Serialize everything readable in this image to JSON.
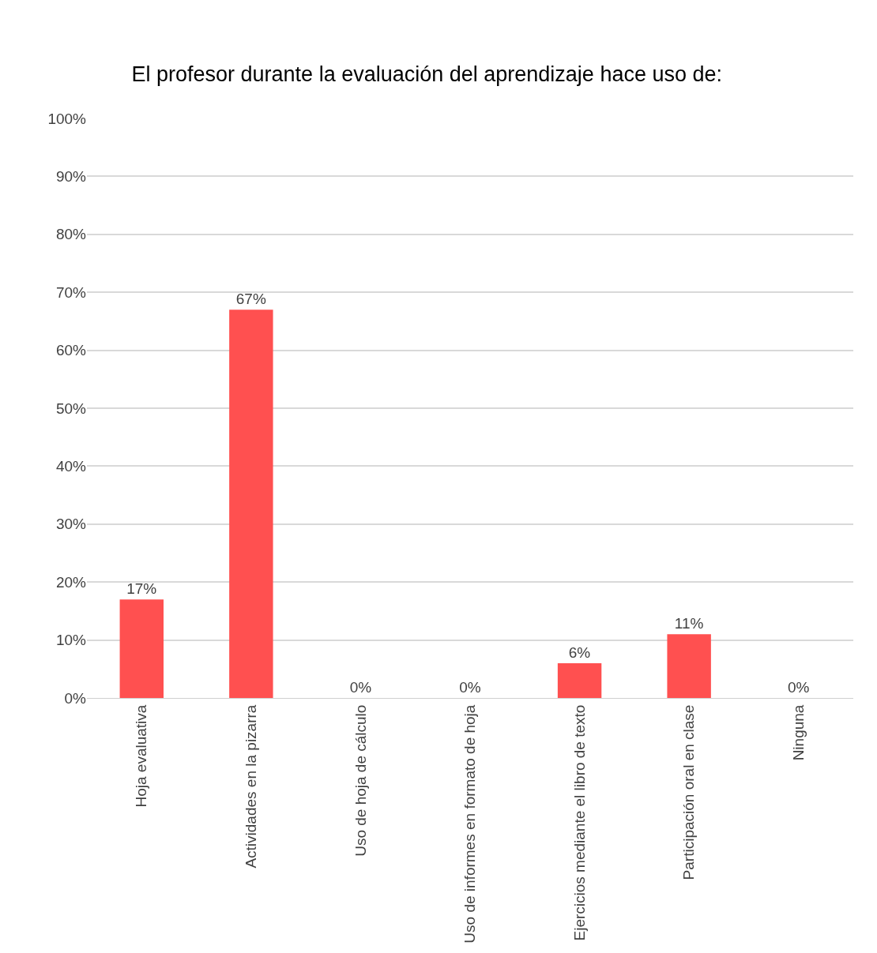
{
  "chart_data": {
    "type": "bar",
    "title": "El profesor durante la evaluación del aprendizaje hace uso de:",
    "categories": [
      "Hoja evaluativa",
      "Actividades en la pizarra",
      "Uso de hoja de cálculo",
      "Uso de informes en formato de hoja",
      "Ejercicios mediante el libro de texto",
      "Participación oral en clase",
      "Ninguna"
    ],
    "values": [
      17,
      67,
      0,
      0,
      6,
      11,
      0
    ],
    "value_labels": [
      "17%",
      "67%",
      "0%",
      "0%",
      "6%",
      "11%",
      "0%"
    ],
    "color": "#ff5050",
    "ylim": [
      0,
      100
    ],
    "yticks": [
      {
        "value": 0,
        "label": "0%"
      },
      {
        "value": 10,
        "label": "10%"
      },
      {
        "value": 20,
        "label": "20%"
      },
      {
        "value": 30,
        "label": "30%"
      },
      {
        "value": 40,
        "label": "40%"
      },
      {
        "value": 50,
        "label": "50%"
      },
      {
        "value": 60,
        "label": "60%"
      },
      {
        "value": 70,
        "label": "70%"
      },
      {
        "value": 80,
        "label": "80%"
      },
      {
        "value": 90,
        "label": "90%"
      },
      {
        "value": 100,
        "label": "100%"
      }
    ],
    "grid": "y",
    "legend": false
  }
}
